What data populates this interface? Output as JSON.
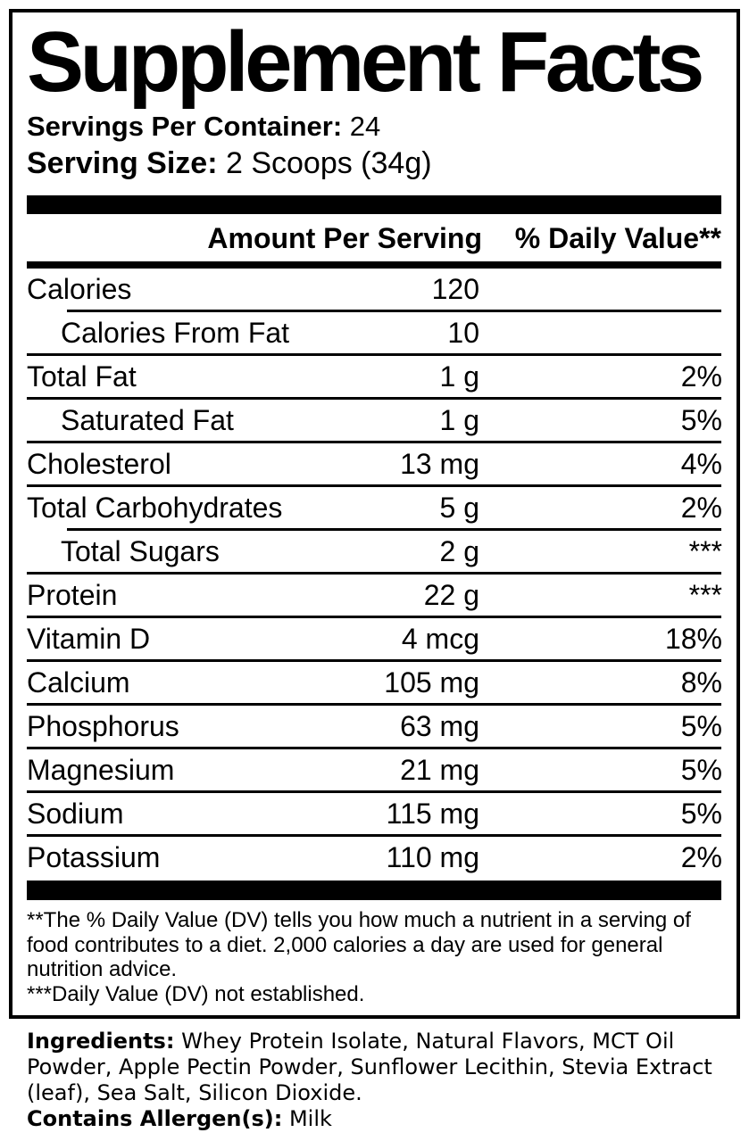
{
  "colors": {
    "text": "#000000",
    "background": "#ffffff"
  },
  "label": {
    "title": "Supplement Facts",
    "servings": {
      "label": "Servings Per Container:",
      "value": "24"
    },
    "serving_size": {
      "label": "Serving Size:",
      "value": "2 Scoops (34g)"
    },
    "columns": {
      "amount": "Amount Per Serving",
      "daily_value": "% Daily Value**"
    },
    "rows": [
      {
        "name": "Calories",
        "amount": "120",
        "daily_value": ""
      },
      {
        "name": "Calories From Fat",
        "amount": "10",
        "daily_value": ""
      },
      {
        "name": "Total Fat",
        "amount": "1 g",
        "daily_value": "2%"
      },
      {
        "name": "Saturated Fat",
        "amount": "1 g",
        "daily_value": "5%"
      },
      {
        "name": "Cholesterol",
        "amount": "13 mg",
        "daily_value": "4%"
      },
      {
        "name": "Total Carbohydrates",
        "amount": "5 g",
        "daily_value": "2%"
      },
      {
        "name": "Total Sugars",
        "amount": "2 g",
        "daily_value": "***"
      },
      {
        "name": "Protein",
        "amount": "22 g",
        "daily_value": "***"
      },
      {
        "name": "Vitamin D",
        "amount": "4 mcg",
        "daily_value": "18%"
      },
      {
        "name": "Calcium",
        "amount": "105 mg",
        "daily_value": "8%"
      },
      {
        "name": "Phosphorus",
        "amount": "63 mg",
        "daily_value": "5%"
      },
      {
        "name": "Magnesium",
        "amount": "21 mg",
        "daily_value": "5%"
      },
      {
        "name": "Sodium",
        "amount": "115 mg",
        "daily_value": "5%"
      },
      {
        "name": "Potassium",
        "amount": "110 mg",
        "daily_value": "2%"
      }
    ],
    "footnotes": {
      "daily_value": "**The % Daily Value (DV) tells you how much a nutrient in a serving of food contributes to a diet. 2,000 calories a day are used for general nutrition advice.",
      "not_established": "***Daily Value (DV) not established."
    }
  },
  "ingredients": {
    "label": "Ingredients:",
    "value": "Whey Protein Isolate, Natural Flavors, MCT Oil Powder, Apple Pectin Powder, Sunflower Lecithin, Stevia Extract (leaf), Sea Salt, Silicon Dioxide.",
    "allergens": {
      "label": "Contains Allergen(s):",
      "value": "Milk"
    }
  }
}
